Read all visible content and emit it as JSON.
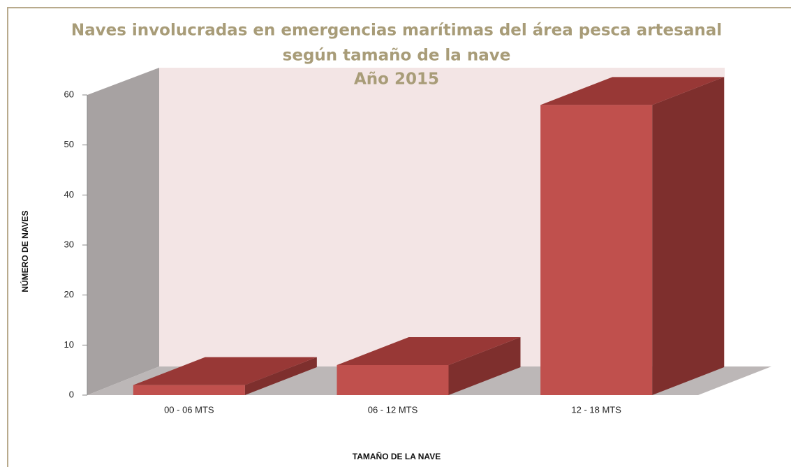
{
  "chart_data": {
    "type": "bar3d",
    "title": [
      "Naves involucradas en emergencias marítimas del área pesca artesanal",
      "según tamaño de la nave",
      "Año 2015"
    ],
    "x_label": "TAMAÑO DE LA NAVE",
    "y_label": "NÚMERO DE NAVES",
    "categories": [
      "00 - 06 MTS",
      "06 - 12 MTS",
      "12 - 18 MTS"
    ],
    "values": [
      2,
      6,
      58
    ],
    "color": "#c0504d",
    "ylim": [
      0,
      60
    ],
    "yticks": [
      0,
      10,
      20,
      30,
      40,
      50,
      60
    ],
    "grid": false
  }
}
